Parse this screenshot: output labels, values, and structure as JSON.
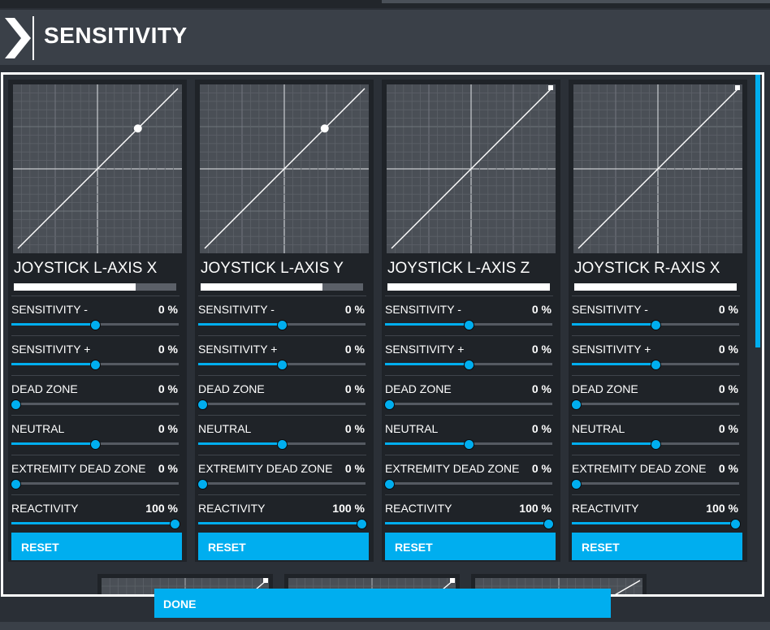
{
  "header": {
    "title": "SENSITIVITY"
  },
  "colors": {
    "accent": "#00aeef",
    "panel": "#1f2328",
    "graph_bg": "#4a4f56"
  },
  "panels": [
    {
      "axis_name": "JOYSTICK L-AXIS X",
      "axis_level": 0.75,
      "curve_point": true,
      "settings": [
        {
          "label": "SENSITIVITY -",
          "value": "0 %",
          "level": 0.5
        },
        {
          "label": "SENSITIVITY +",
          "value": "0 %",
          "level": 0.5
        },
        {
          "label": "DEAD ZONE",
          "value": "0 %",
          "level": 0.0
        },
        {
          "label": "NEUTRAL",
          "value": "0 %",
          "level": 0.5
        },
        {
          "label": "EXTREMITY DEAD ZONE",
          "value": "0 %",
          "level": 0.0
        },
        {
          "label": "REACTIVITY",
          "value": "100 %",
          "level": 1.0
        }
      ],
      "reset_label": "RESET"
    },
    {
      "axis_name": "JOYSTICK L-AXIS Y",
      "axis_level": 0.75,
      "curve_point": true,
      "settings": [
        {
          "label": "SENSITIVITY -",
          "value": "0 %",
          "level": 0.5
        },
        {
          "label": "SENSITIVITY +",
          "value": "0 %",
          "level": 0.5
        },
        {
          "label": "DEAD ZONE",
          "value": "0 %",
          "level": 0.0
        },
        {
          "label": "NEUTRAL",
          "value": "0 %",
          "level": 0.5
        },
        {
          "label": "EXTREMITY DEAD ZONE",
          "value": "0 %",
          "level": 0.0
        },
        {
          "label": "REACTIVITY",
          "value": "100 %",
          "level": 1.0
        }
      ],
      "reset_label": "RESET"
    },
    {
      "axis_name": "JOYSTICK L-AXIS Z",
      "axis_level": 1.0,
      "curve_point": false,
      "settings": [
        {
          "label": "SENSITIVITY -",
          "value": "0 %",
          "level": 0.5
        },
        {
          "label": "SENSITIVITY +",
          "value": "0 %",
          "level": 0.5
        },
        {
          "label": "DEAD ZONE",
          "value": "0 %",
          "level": 0.0
        },
        {
          "label": "NEUTRAL",
          "value": "0 %",
          "level": 0.5
        },
        {
          "label": "EXTREMITY DEAD ZONE",
          "value": "0 %",
          "level": 0.0
        },
        {
          "label": "REACTIVITY",
          "value": "100 %",
          "level": 1.0
        }
      ],
      "reset_label": "RESET"
    },
    {
      "axis_name": "JOYSTICK R-AXIS X",
      "axis_level": 1.0,
      "curve_point": false,
      "settings": [
        {
          "label": "SENSITIVITY -",
          "value": "0 %",
          "level": 0.5
        },
        {
          "label": "SENSITIVITY +",
          "value": "0 %",
          "level": 0.5
        },
        {
          "label": "DEAD ZONE",
          "value": "0 %",
          "level": 0.0
        },
        {
          "label": "NEUTRAL",
          "value": "0 %",
          "level": 0.5
        },
        {
          "label": "EXTREMITY DEAD ZONE",
          "value": "0 %",
          "level": 0.0
        },
        {
          "label": "REACTIVITY",
          "value": "100 %",
          "level": 1.0
        }
      ],
      "reset_label": "RESET"
    }
  ],
  "done_label": "DONE"
}
